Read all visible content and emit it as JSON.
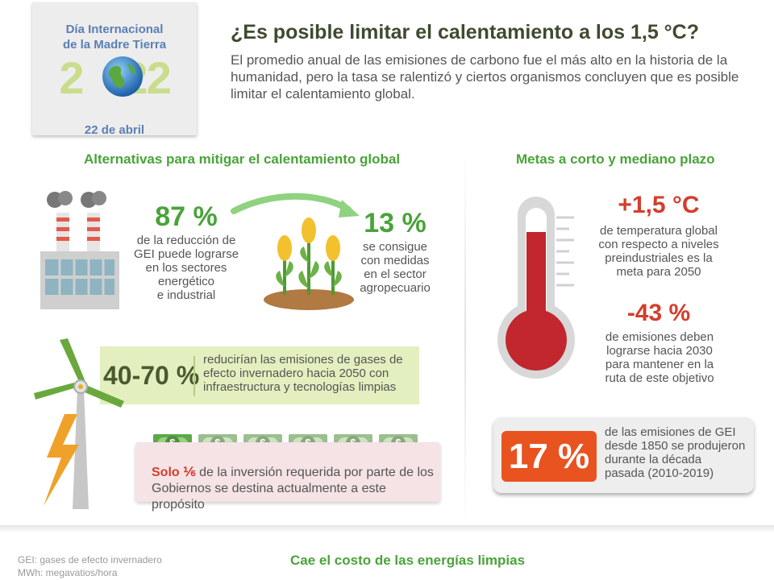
{
  "badge": {
    "line1": "Día Internacional",
    "line2": "de la Madre Tierra",
    "year_left": "2",
    "year_right": "22",
    "date": "22 de abril"
  },
  "header": {
    "title": "¿Es posible limitar el calentamiento a los 1,5 °C?",
    "subtitle": "El promedio anual de las emisiones de carbono fue el más alto en la historia de la humanidad, pero la tasa se ralentizó y ciertos organismos concluyen que es posible limitar el calentamiento global."
  },
  "alternatives": {
    "title": "Alternativas para mitigar el calentamiento global",
    "stat1_value": "87 %",
    "stat1_text": [
      "de la reducción de",
      "GEI puede lograrse",
      "en los sectores",
      "energético",
      "e industrial"
    ],
    "stat2_value": "13 %",
    "stat2_text": [
      "se consigue",
      "con medidas",
      "en el sector",
      "agropecuario"
    ],
    "stat3_value": "40-70 %",
    "stat3_text": [
      "reducirían las emisiones de gases de",
      "efecto invernadero hacia 2050 con",
      "infraestructura y tecnologías limpias"
    ],
    "investment_bold": "Solo ⅙",
    "investment_rest": "de la inversión requerida por parte de los",
    "investment_line2": "Gobiernos se destina actualmente a este propósito",
    "bill_symbol": "$"
  },
  "goals": {
    "title": "Metas a corto y mediano plazo",
    "goal1_value": "+1,5 °C",
    "goal1_text": [
      "de temperatura global",
      "con respecto a niveles",
      "preindustriales es la",
      "meta para 2050"
    ],
    "goal2_value": "-43 %",
    "goal2_text": [
      "de emisiones deben",
      "lograrse hacia 2030",
      "para mantener en la",
      "ruta de este objetivo"
    ],
    "goal3_value": "17 %",
    "goal3_text": [
      "de las emisiones de GEI",
      "desde 1850 se produjeron",
      "durante la década",
      "pasada (2010-2019)"
    ]
  },
  "footer": {
    "note1": "GEI: gases de efecto invernadero",
    "note2": "MWh: megavatios/hora",
    "next_title": "Cae el costo de las energías limpias"
  },
  "colors": {
    "accent_green": "#4aa33a",
    "accent_red": "#d33e2c",
    "accent_orange": "#e8531f",
    "badge_blue": "#5b7fb5"
  }
}
